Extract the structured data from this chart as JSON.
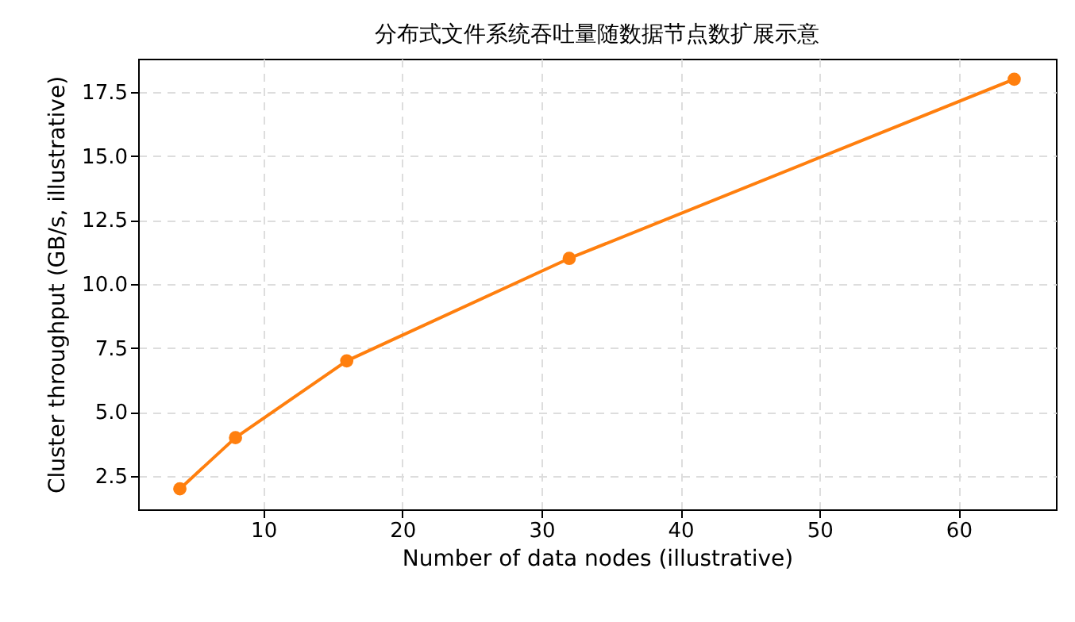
{
  "chart_data": {
    "type": "line",
    "title": "分布式文件系统吞吐量随数据节点数扩展示意",
    "xlabel": "Number of data nodes (illustrative)",
    "ylabel": "Cluster throughput (GB/s, illustrative)",
    "x": [
      4,
      8,
      16,
      32,
      64
    ],
    "series": [
      {
        "color": "#ff7f0e",
        "values": [
          2,
          4,
          7,
          11,
          18
        ]
      }
    ],
    "xlim": [
      1,
      67
    ],
    "xticks": [
      10,
      20,
      30,
      40,
      50,
      60
    ],
    "ylim": [
      1.2,
      18.8
    ],
    "yticks": [
      2.5,
      {
        "value": 5,
        "label": "5.0"
      },
      7.5,
      {
        "value": 10,
        "label": "10.0"
      },
      12.5,
      {
        "value": 15,
        "label": "15.0"
      },
      17.5
    ],
    "grid": true,
    "marker": "circle",
    "line_style": "solid"
  }
}
